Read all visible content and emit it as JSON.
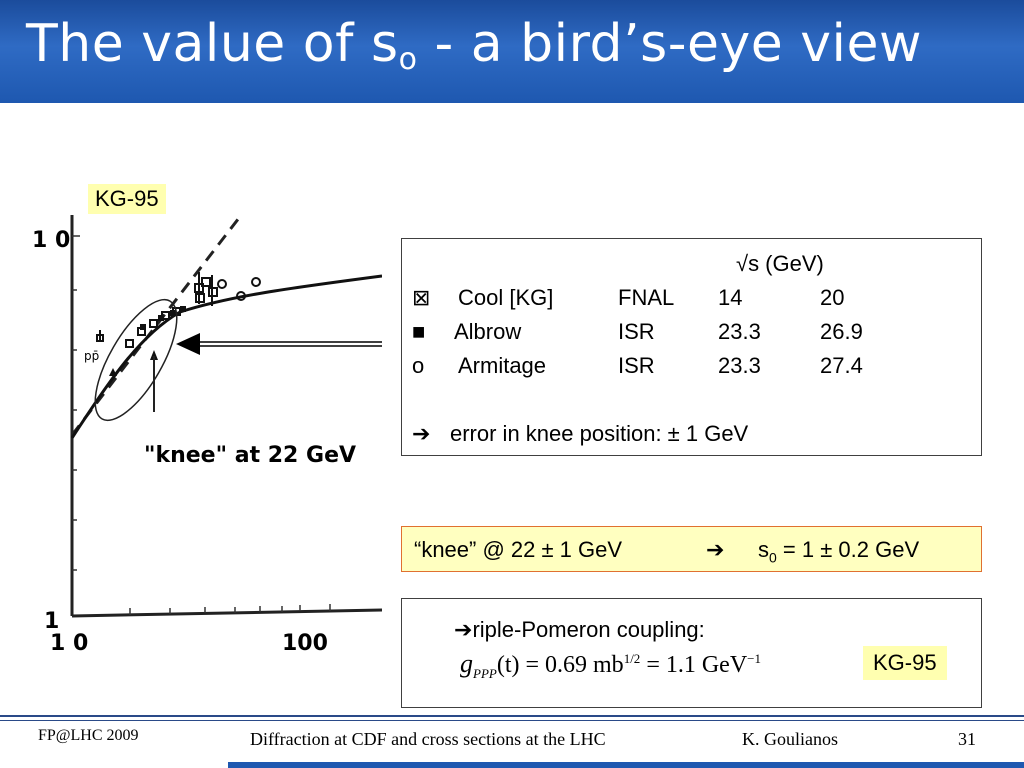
{
  "title": {
    "main": "The value of s",
    "sub": "o",
    "rest": " -  a bird’s-eye view"
  },
  "plot": {
    "y_tick_top": "1 0",
    "y_tick_bottom": "1",
    "x_tick_left": "1 0",
    "x_tick_right": "100",
    "annotation": "\"knee\" at 22 GeV",
    "legend_ppbar": "pp̄"
  },
  "kg_label_top": "KG-95",
  "kg_label_bottom": "KG-95",
  "table": {
    "header": "√s (GeV)",
    "rows": [
      {
        "marker": "⊠",
        "name": "Cool [KG]",
        "lab": "FNAL",
        "v1": "14",
        "v2": "20"
      },
      {
        "marker": "■",
        "name": "Albrow",
        "lab": "ISR",
        "v1": "23.3",
        "v2": "26.9"
      },
      {
        "marker": "o",
        "name": "Armitage",
        "lab": "ISR",
        "v1": "23.3",
        "v2": "27.4"
      }
    ],
    "arrow": "➔",
    "error_text": "error in knee position: ± 1 GeV"
  },
  "knee": {
    "left": "“knee” @ 22 ± 1 GeV",
    "arrow": "➔",
    "s": "s",
    "s_sub": "0",
    "right": " = 1 ± 0.2 GeV"
  },
  "coupling": {
    "arrow": "➔",
    "label": "riple-Pomeron coupling:",
    "g": "g",
    "g_sub": "PPP",
    "mid": "(t) = 0.69 mb",
    "mb_sup": "1/2",
    "eq2": " = 1.1 GeV",
    "gev_sup": "−1"
  },
  "footer": {
    "left": "FP@LHC 2009",
    "center": "Diffraction at CDF and cross sections at the LHC",
    "author": "K. Goulianos",
    "page": "31"
  }
}
